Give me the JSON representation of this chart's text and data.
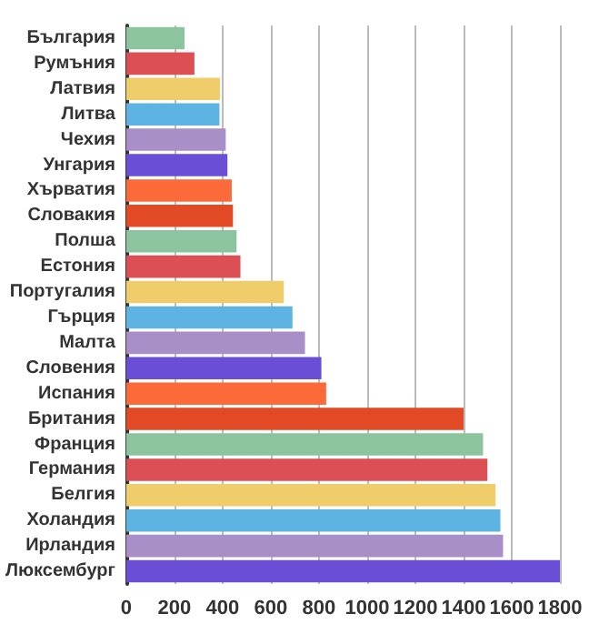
{
  "chart_data": {
    "type": "bar",
    "orientation": "horizontal",
    "categories": [
      "България",
      "Румъния",
      "Латвия",
      "Литва",
      "Чехия",
      "Унгария",
      "Хърватия",
      "Словакия",
      "Полша",
      "Естония",
      "Португалия",
      "Гърция",
      "Малта",
      "Словения",
      "Испания",
      "Британия",
      "Франция",
      "Германия",
      "Белгия",
      "Холандия",
      "Ирландия",
      "Люксембург"
    ],
    "values": [
      242,
      283,
      389,
      387,
      413,
      420,
      438,
      443,
      458,
      474,
      654,
      690,
      742,
      810,
      830,
      1400,
      1481,
      1499,
      1533,
      1553,
      1564,
      1800
    ],
    "colors": [
      "#8cc4a0",
      "#dc4f55",
      "#f0cd6b",
      "#5db4e3",
      "#a88fc8",
      "#6a4fd6",
      "#fd6a3a",
      "#e24a26",
      "#8cc4a0",
      "#dc4f55",
      "#f0cd6b",
      "#5db4e3",
      "#a88fc8",
      "#6a4fd6",
      "#fd6a3a",
      "#e24a26",
      "#8cc4a0",
      "#dc4f55",
      "#f0cd6b",
      "#5db4e3",
      "#a88fc8",
      "#6a4fd6"
    ],
    "xlim": [
      0,
      1800
    ],
    "xticks": [
      0,
      200,
      400,
      600,
      800,
      1000,
      1200,
      1400,
      1600,
      1800
    ],
    "grid": "x"
  }
}
